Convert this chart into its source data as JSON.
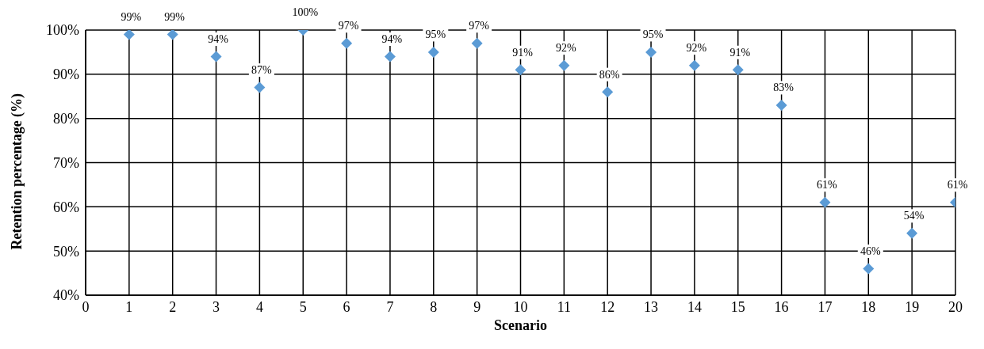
{
  "chart_data": {
    "type": "scatter",
    "xlabel": "Scenario",
    "ylabel": "Retention percentage (%)",
    "x": [
      1,
      2,
      3,
      4,
      5,
      6,
      7,
      8,
      9,
      10,
      11,
      12,
      13,
      14,
      15,
      16,
      17,
      18,
      19,
      20
    ],
    "values": [
      99,
      99,
      94,
      87,
      100,
      97,
      94,
      95,
      97,
      91,
      92,
      86,
      95,
      92,
      91,
      83,
      61,
      46,
      54,
      61
    ],
    "value_labels": [
      "99%",
      "99%",
      "94%",
      "87%",
      "100%",
      "97%",
      "94%",
      "95%",
      "97%",
      "91%",
      "92%",
      "86%",
      "95%",
      "92%",
      "91%",
      "83%",
      "61%",
      "46%",
      "54%",
      "61%"
    ],
    "color": "#5b9bd5",
    "marker": "diamond",
    "grid": true,
    "legend": false,
    "xlim": [
      0,
      20
    ],
    "xticks": [
      0,
      1,
      2,
      3,
      4,
      5,
      6,
      7,
      8,
      9,
      10,
      11,
      12,
      13,
      14,
      15,
      16,
      17,
      18,
      19,
      20
    ],
    "ylim": [
      40,
      100
    ],
    "yticks": [
      {
        "value": 40,
        "label": "40%"
      },
      {
        "value": 50,
        "label": "50%"
      },
      {
        "value": 60,
        "label": "60%"
      },
      {
        "value": 70,
        "label": "70%"
      },
      {
        "value": 80,
        "label": "80%"
      },
      {
        "value": 90,
        "label": "90%"
      },
      {
        "value": 100,
        "label": "100%"
      }
    ]
  }
}
